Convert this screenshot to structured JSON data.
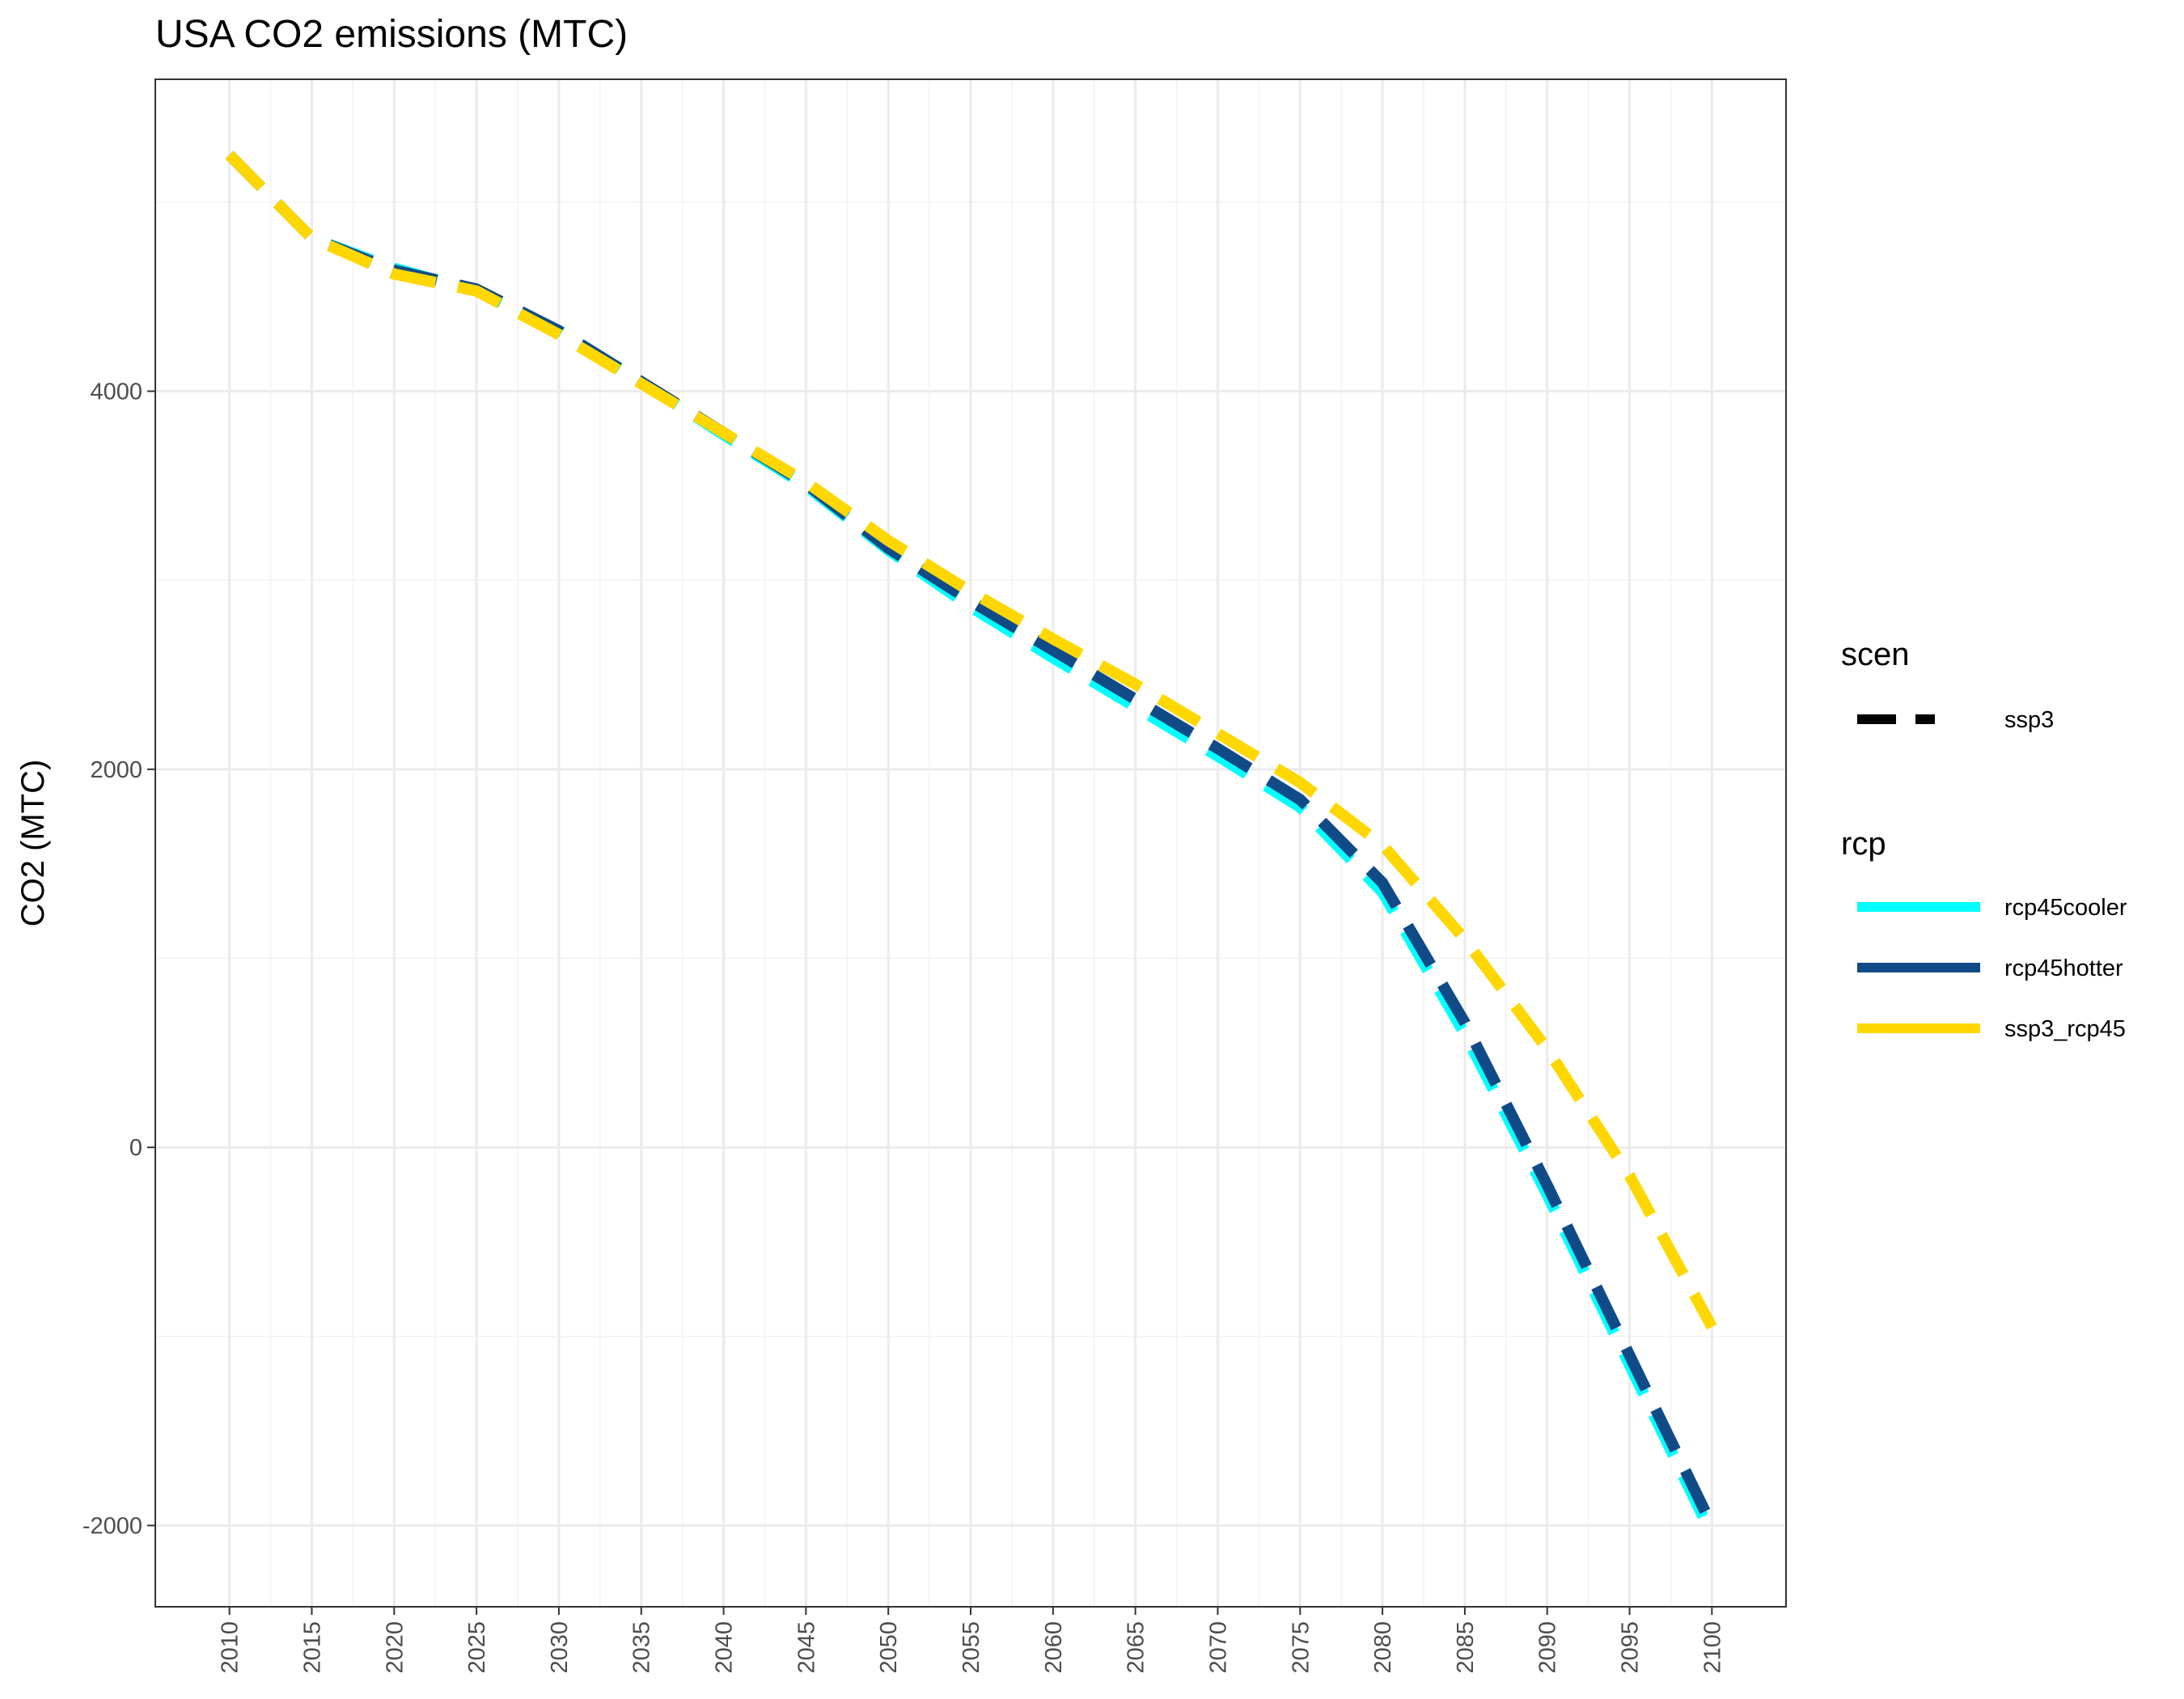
{
  "chart_data": {
    "type": "line",
    "title": "USA CO2 emissions (MTC)",
    "xlabel": "",
    "ylabel": "CO2 (MTC)",
    "x": [
      2010,
      2015,
      2020,
      2025,
      2030,
      2035,
      2040,
      2045,
      2050,
      2055,
      2060,
      2065,
      2070,
      2075,
      2080,
      2085,
      2090,
      2095,
      2100
    ],
    "x_tick_labels": [
      "2010",
      "2015",
      "2020",
      "2025",
      "2030",
      "2035",
      "2040",
      "2045",
      "2050",
      "2055",
      "2060",
      "2065",
      "2070",
      "2075",
      "2080",
      "2085",
      "2090",
      "2095",
      "2100"
    ],
    "y_ticks": [
      -2000,
      0,
      2000,
      4000
    ],
    "y_tick_labels": [
      "-2000",
      "0",
      "2000",
      "4000"
    ],
    "xlim": [
      2005.5,
      2104.5
    ],
    "ylim": [
      -2430,
      5650
    ],
    "grid": true,
    "legend_placement": "right",
    "series": [
      {
        "name": "rcp45cooler",
        "color": "#00FFFF",
        "values": [
          5250,
          4810,
          4650,
          4530,
          4320,
          4050,
          3770,
          3500,
          3160,
          2860,
          2590,
          2330,
          2070,
          1800,
          1350,
          600,
          -250,
          -1150,
          -2050
        ]
      },
      {
        "name": "rcp45hotter",
        "color": "#114B87",
        "values": [
          5250,
          4810,
          4640,
          4540,
          4320,
          4050,
          3780,
          3510,
          3170,
          2890,
          2630,
          2370,
          2110,
          1840,
          1400,
          660,
          -200,
          -1100,
          -2000
        ]
      },
      {
        "name": "ssp3_rcp45",
        "color": "#FFD700",
        "values": [
          5250,
          4810,
          4620,
          4530,
          4300,
          4040,
          3780,
          3520,
          3210,
          2940,
          2690,
          2450,
          2190,
          1930,
          1600,
          1100,
          520,
          -150,
          -950
        ]
      }
    ],
    "legend": {
      "linetype_title": "scen",
      "linetype_entries": [
        "ssp3"
      ],
      "color_title": "rcp",
      "color_entries": [
        "rcp45cooler",
        "rcp45hotter",
        "ssp3_rcp45"
      ]
    }
  }
}
